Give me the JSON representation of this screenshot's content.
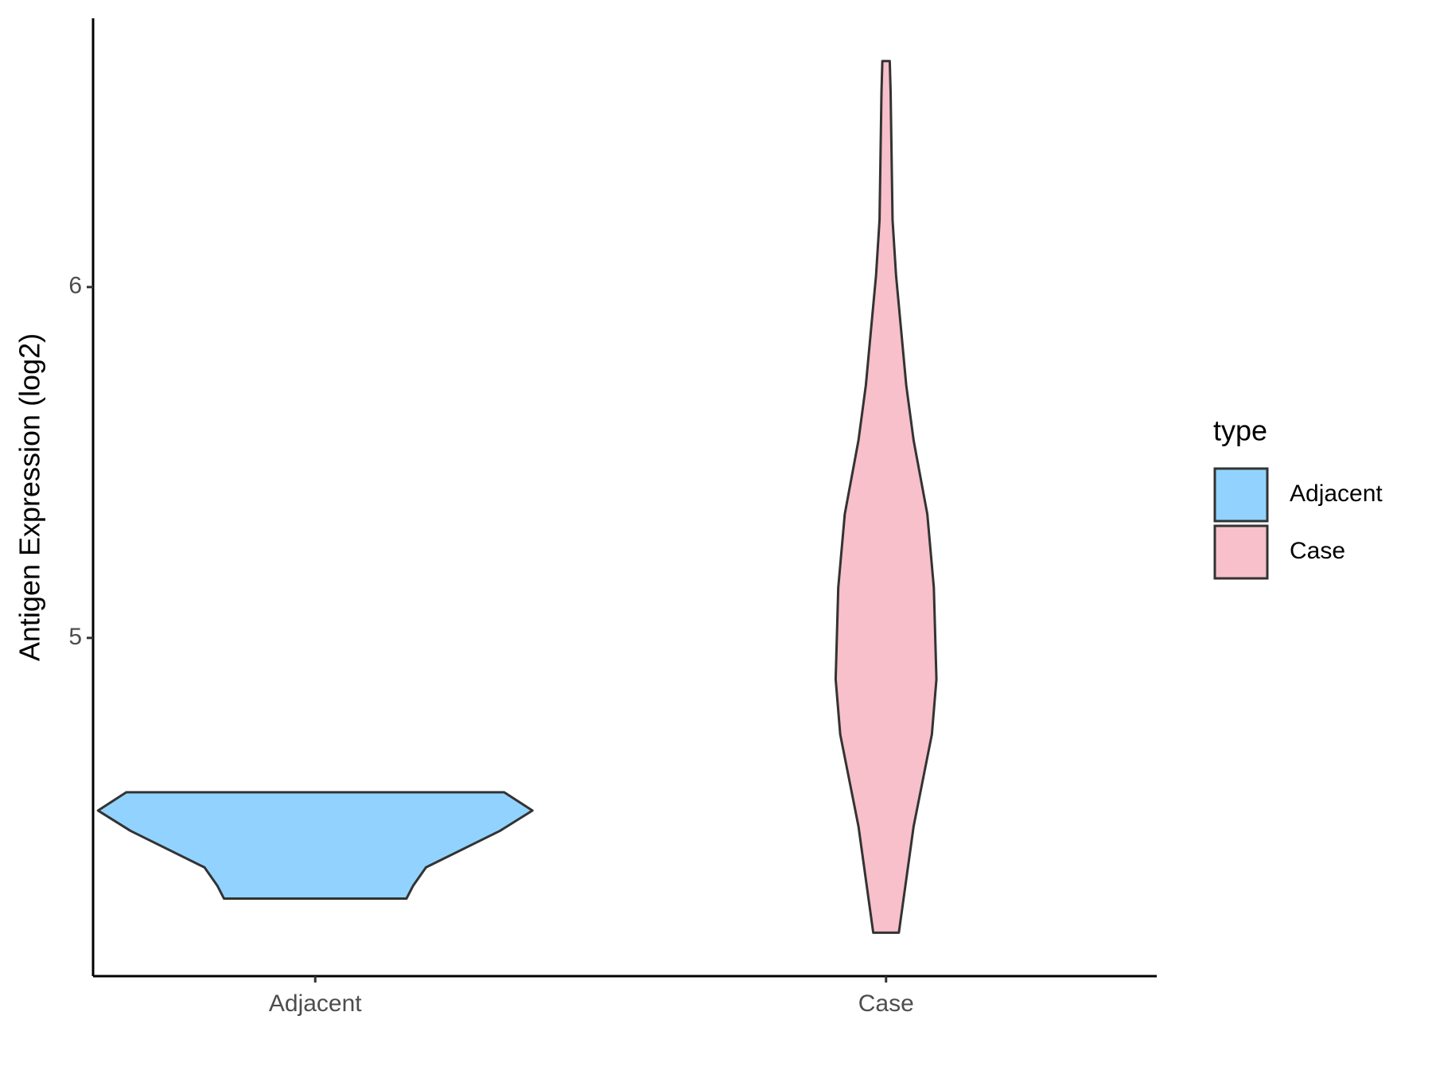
{
  "chart_data": {
    "type": "violin",
    "y_label": "Antigen Expression (log2)",
    "legend_title": "type",
    "legend_position": "right",
    "categories": [
      "Adjacent",
      "Case"
    ],
    "series": [
      {
        "name": "Adjacent",
        "color": "#91d3fe",
        "y": [
          4.56,
          4.508,
          4.45,
          4.346,
          4.293,
          4.257
        ],
        "width": [
          0.87,
          1,
          0.85,
          0.51,
          0.45,
          0.42
        ]
      },
      {
        "name": "Case",
        "color": "#f7c0ca",
        "y": [
          6.644,
          6.557,
          6.191,
          6.034,
          5.72,
          5.563,
          5.353,
          5.144,
          4.882,
          4.725,
          4.463,
          4.16
        ],
        "width": [
          0.017,
          0.021,
          0.03,
          0.046,
          0.093,
          0.127,
          0.19,
          0.22,
          0.232,
          0.211,
          0.127,
          0.059
        ]
      }
    ],
    "ylim": [
      4.036,
      6.766
    ],
    "yticks": [
      5,
      6
    ],
    "grid": false
  }
}
